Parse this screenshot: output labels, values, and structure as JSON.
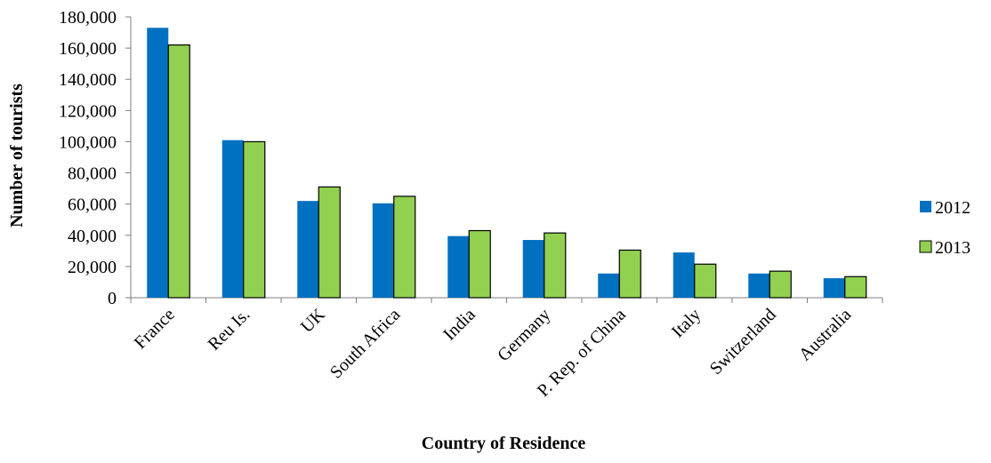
{
  "chart_data": {
    "type": "bar",
    "title": "",
    "xlabel": "Country of Residence",
    "ylabel": "Number of tourists",
    "categories": [
      "France",
      "Reu Is.",
      "UK",
      "South Africa",
      "India",
      "Germany",
      "P. Rep. of China",
      "Italy",
      "Switzerland",
      "Australia"
    ],
    "series": [
      {
        "name": "2012",
        "color": "#0070C0",
        "values": [
          173000,
          101000,
          62000,
          60500,
          39500,
          37000,
          15500,
          29000,
          15500,
          12500
        ]
      },
      {
        "name": "2013",
        "color": "#92D050",
        "values": [
          162000,
          100000,
          71000,
          65000,
          43000,
          41500,
          30500,
          21500,
          17000,
          13500
        ]
      }
    ],
    "ylim": [
      0,
      180000
    ],
    "yticks": [
      "0",
      "20,000",
      "40,000",
      "60,000",
      "80,000",
      "100,000",
      "120,000",
      "140,000",
      "160,000",
      "180,000"
    ],
    "grid": false,
    "legend_position": "right"
  }
}
